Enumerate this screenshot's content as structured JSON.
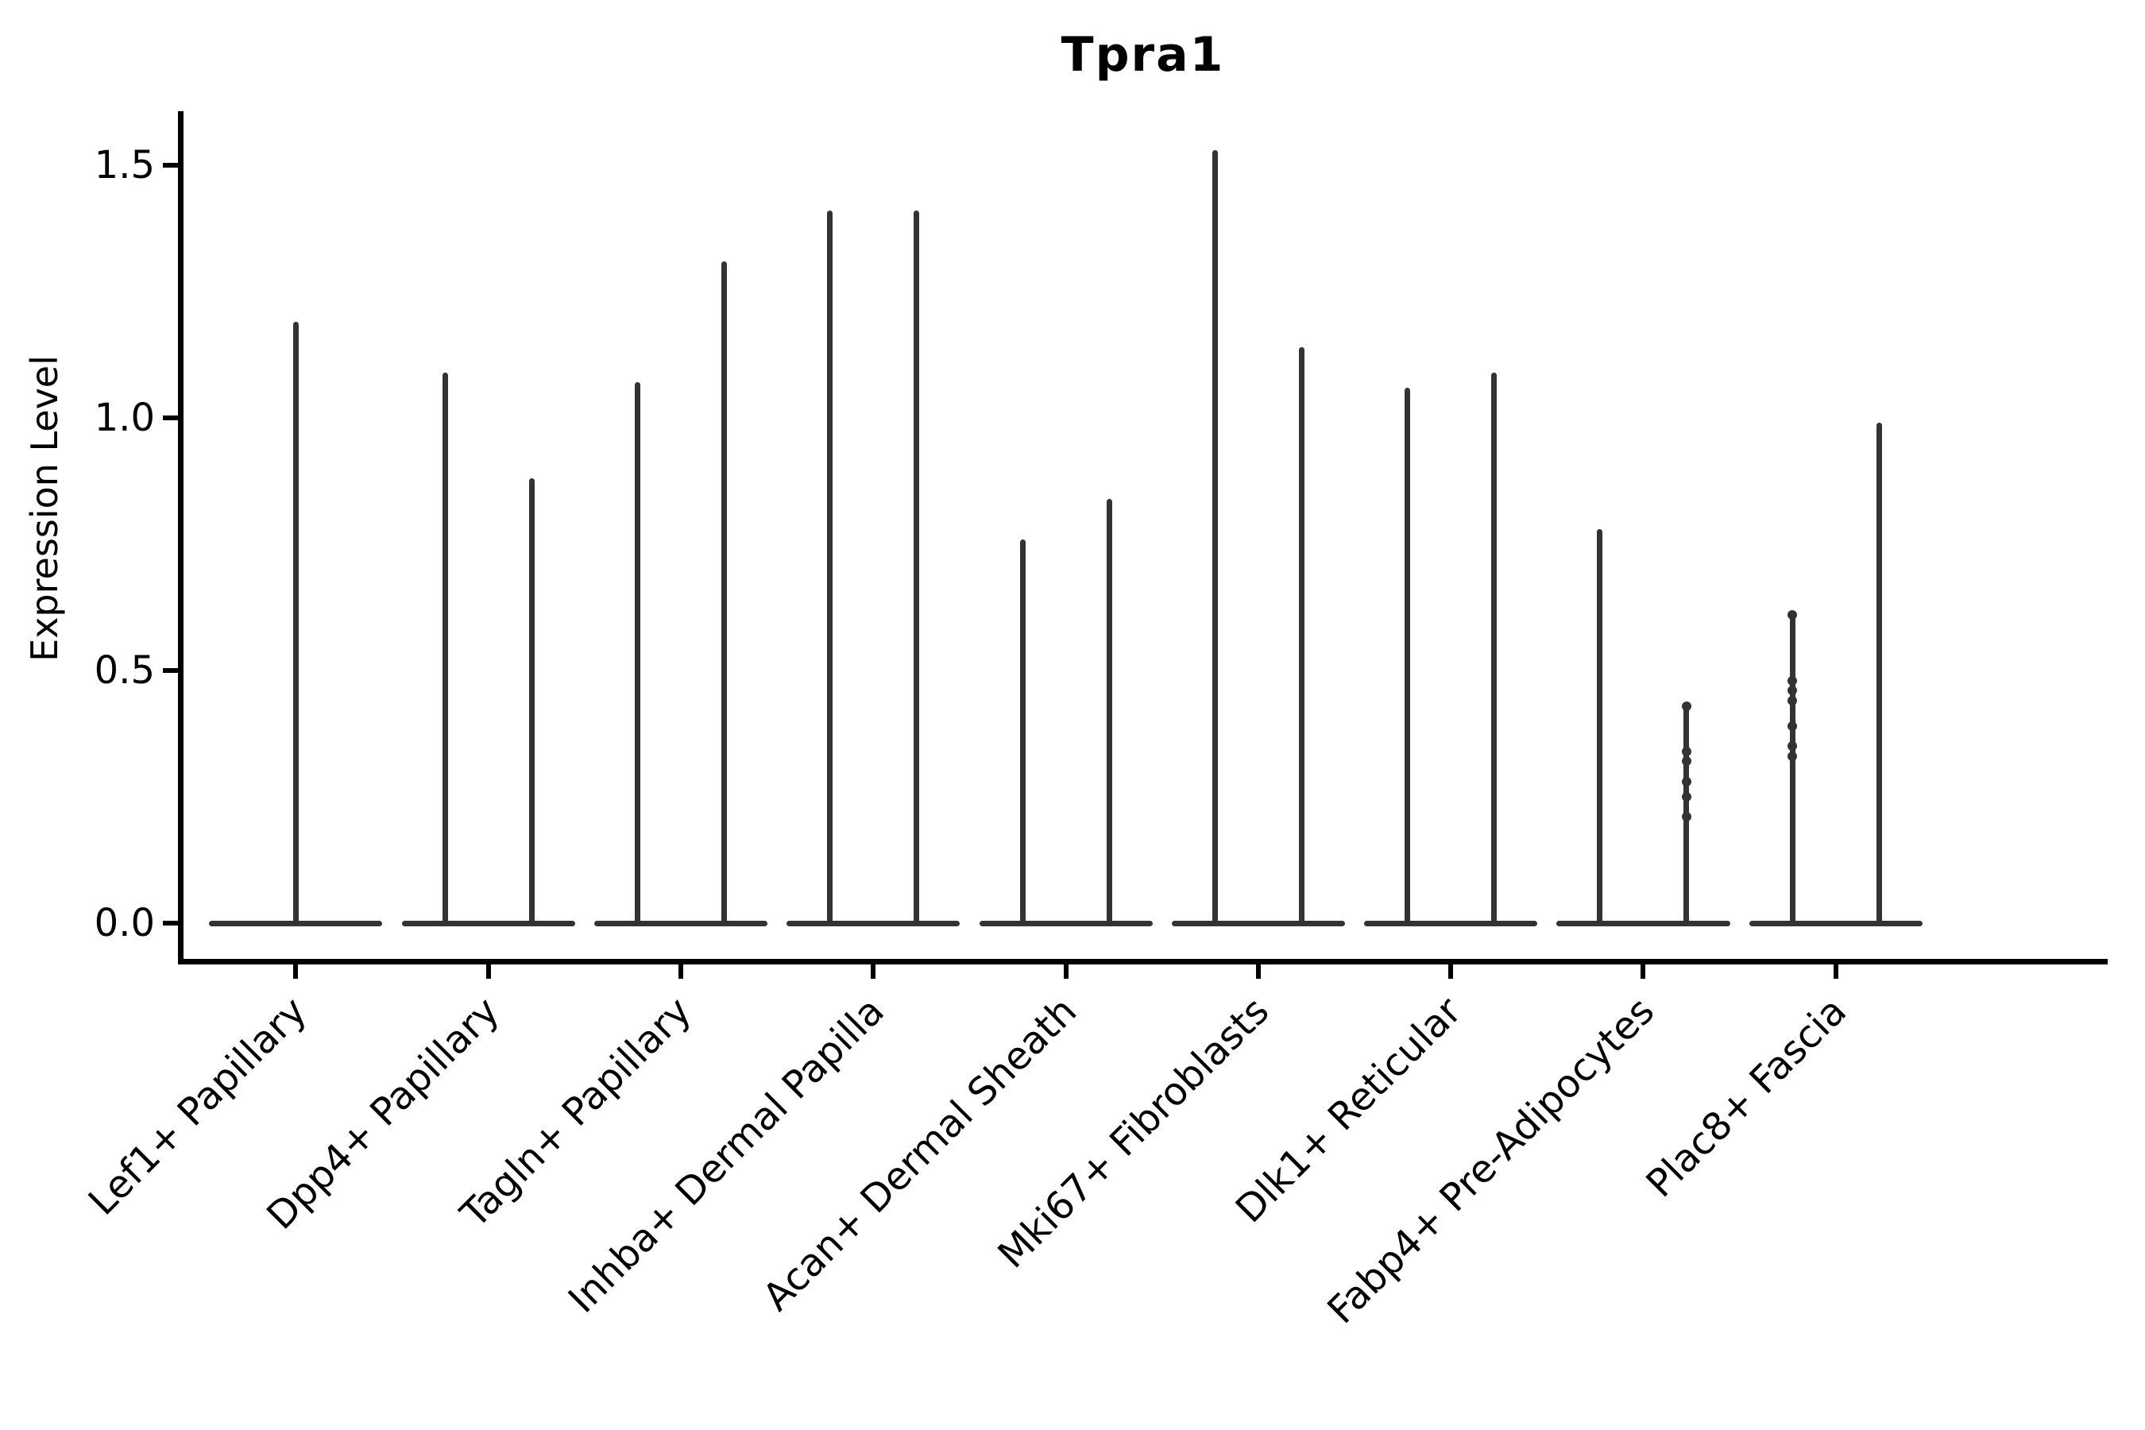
{
  "title": "Tpra1",
  "y_axis": {
    "label": "Expression Level",
    "tick_labels": [
      "1.5",
      "1.0",
      "0.5",
      "0.0"
    ],
    "tick_values": [
      1.5,
      1.0,
      0.5,
      0.0
    ]
  },
  "x_axis": {
    "tick_labels": [
      "Lef1+ Papillary",
      "Dpp4+ Papillary",
      "Tagln+ Papillary",
      "Inhba+ Dermal Papilla",
      "Acan+ Dermal Sheath",
      "Mki67+ Fibroblasts",
      "Dlk1+ Reticular",
      "Fabp4+ Pre-Adipocytes",
      "Plac8+ Fascia"
    ]
  },
  "colors": {
    "background": "#ffffff",
    "axis": "#000000",
    "text": "#000000",
    "violin_line": "#333333"
  },
  "chart_data": {
    "type": "violin",
    "title": "Tpra1",
    "xlabel": "",
    "ylabel": "Expression Level",
    "ylim": [
      -0.08,
      1.61
    ],
    "yticks": [
      0.0,
      0.5,
      1.0,
      1.5
    ],
    "grid": false,
    "legend": false,
    "shape_note": "Each violin is collapsed: a flat base at expression 0 spanning the violin width plus a thin vertical spike up to the maximum expression; categories 2-9 contain two side-by-side (dodged) violins, category 1 a single centered violin",
    "categories": [
      "Lef1+ Papillary",
      "Dpp4+ Papillary",
      "Tagln+ Papillary",
      "Inhba+ Dermal Papilla",
      "Acan+ Dermal Sheath",
      "Mki67+ Fibroblasts",
      "Dlk1+ Reticular",
      "Fabp4+ Pre-Adipocytes",
      "Plac8+ Fascia"
    ],
    "violins": [
      {
        "category": "Lef1+ Papillary",
        "groups": [
          {
            "position": "center",
            "min": 0.0,
            "max": 1.19
          }
        ]
      },
      {
        "category": "Dpp4+ Papillary",
        "groups": [
          {
            "position": "left",
            "min": 0.0,
            "max": 1.09
          },
          {
            "position": "right",
            "min": 0.0,
            "max": 0.88
          }
        ]
      },
      {
        "category": "Tagln+ Papillary",
        "groups": [
          {
            "position": "left",
            "min": 0.0,
            "max": 1.07
          },
          {
            "position": "right",
            "min": 0.0,
            "max": 1.31
          }
        ]
      },
      {
        "category": "Inhba+ Dermal Papilla",
        "groups": [
          {
            "position": "left",
            "min": 0.0,
            "max": 1.41
          },
          {
            "position": "right",
            "min": 0.0,
            "max": 1.41
          }
        ]
      },
      {
        "category": "Acan+ Dermal Sheath",
        "groups": [
          {
            "position": "left",
            "min": 0.0,
            "max": 0.76
          },
          {
            "position": "right",
            "min": 0.0,
            "max": 0.84
          }
        ]
      },
      {
        "category": "Mki67+ Fibroblasts",
        "groups": [
          {
            "position": "left",
            "min": 0.0,
            "max": 1.53
          },
          {
            "position": "right",
            "min": 0.0,
            "max": 1.14
          }
        ]
      },
      {
        "category": "Dlk1+ Reticular",
        "groups": [
          {
            "position": "left",
            "min": 0.0,
            "max": 1.06
          },
          {
            "position": "right",
            "min": 0.0,
            "max": 1.09
          }
        ]
      },
      {
        "category": "Fabp4+ Pre-Adipocytes",
        "groups": [
          {
            "position": "left",
            "min": 0.0,
            "max": 0.78
          },
          {
            "position": "right",
            "min": 0.0,
            "max": 0.43,
            "visible_points": [
              0.43,
              0.34,
              0.32,
              0.28,
              0.25,
              0.21
            ]
          }
        ]
      },
      {
        "category": "Plac8+ Fascia",
        "groups": [
          {
            "position": "left",
            "min": 0.0,
            "max": 0.61,
            "visible_points": [
              0.61,
              0.48,
              0.46,
              0.44,
              0.39,
              0.35,
              0.33
            ]
          },
          {
            "position": "right",
            "min": 0.0,
            "max": 0.99
          }
        ]
      }
    ]
  }
}
